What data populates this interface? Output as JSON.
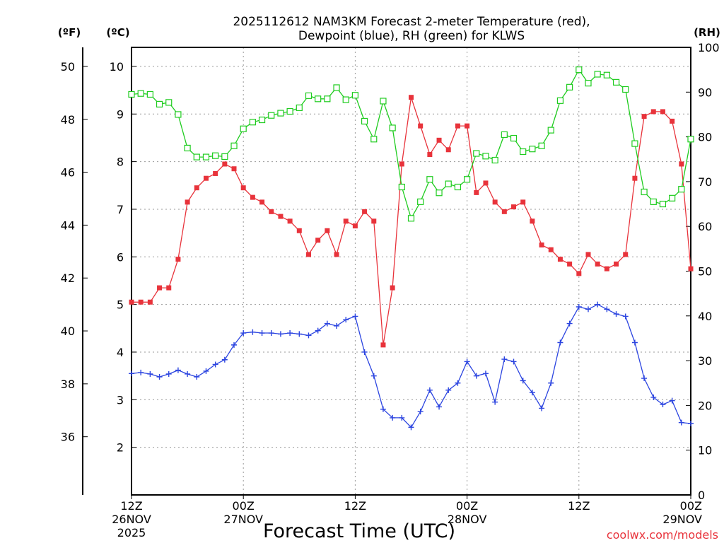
{
  "chart_data": {
    "type": "line",
    "title": "2025112612 NAM3KM Forecast 2-meter Temperature (red),",
    "subtitle": "Dewpoint (blue), RH (green) for KLWS",
    "xlabel": "Forecast Time (UTC)",
    "watermark": "coolwx.com/models",
    "units": {
      "fahrenheit": "(ºF)",
      "celsius": "(ºC)",
      "rh": "(RH)"
    },
    "x_range_hours": [
      0,
      60
    ],
    "x_ticks": [
      {
        "hour": 0,
        "l1": "12Z",
        "l2": "26NOV",
        "l3": "2025"
      },
      {
        "hour": 12,
        "l1": "00Z",
        "l2": "27NOV",
        "l3": ""
      },
      {
        "hour": 24,
        "l1": "12Z",
        "l2": "",
        "l3": ""
      },
      {
        "hour": 36,
        "l1": "00Z",
        "l2": "28NOV",
        "l3": ""
      },
      {
        "hour": 48,
        "l1": "12Z",
        "l2": "",
        "l3": ""
      },
      {
        "hour": 60,
        "l1": "00Z",
        "l2": "29NOV",
        "l3": ""
      }
    ],
    "y_celsius": {
      "range": [
        1,
        10.4
      ],
      "ticks": [
        2,
        3,
        4,
        5,
        6,
        7,
        8,
        9,
        10
      ]
    },
    "y_fahrenheit": {
      "range": [
        33.8,
        50.72
      ],
      "ticks": [
        36,
        38,
        40,
        42,
        44,
        46,
        48,
        50
      ]
    },
    "y_rh": {
      "range": [
        0,
        100
      ],
      "ticks": [
        0,
        10,
        20,
        30,
        40,
        50,
        60,
        70,
        80,
        90,
        100
      ]
    },
    "series": [
      {
        "name": "2-meter Temperature",
        "unit": "C",
        "color": "#e8333b",
        "marker": "filled-square",
        "values": [
          5.05,
          5.05,
          5.05,
          5.35,
          5.35,
          5.95,
          7.15,
          7.45,
          7.65,
          7.75,
          7.95,
          7.85,
          7.45,
          7.25,
          7.15,
          6.95,
          6.85,
          6.75,
          6.55,
          6.05,
          6.35,
          6.55,
          6.05,
          6.75,
          6.65,
          6.95,
          6.75,
          4.15,
          5.35,
          7.95,
          9.35,
          8.75,
          8.15,
          8.45,
          8.25,
          8.75,
          8.75,
          7.35,
          7.55,
          7.15,
          6.95,
          7.05,
          7.15,
          6.75,
          6.25,
          6.15,
          5.95,
          5.85,
          5.65,
          6.05,
          5.85,
          5.75,
          5.85,
          6.05,
          7.65,
          8.95,
          9.05,
          9.05,
          8.85,
          7.95,
          5.75
        ]
      },
      {
        "name": "Dewpoint",
        "unit": "C",
        "color": "#2c45e0",
        "marker": "plus",
        "values": [
          3.55,
          3.57,
          3.54,
          3.48,
          3.54,
          3.62,
          3.54,
          3.48,
          3.6,
          3.74,
          3.84,
          4.15,
          4.4,
          4.42,
          4.4,
          4.4,
          4.38,
          4.4,
          4.38,
          4.35,
          4.45,
          4.6,
          4.55,
          4.68,
          4.75,
          4.0,
          3.5,
          2.8,
          2.62,
          2.62,
          2.42,
          2.75,
          3.2,
          2.85,
          3.2,
          3.35,
          3.8,
          3.5,
          3.55,
          2.95,
          3.85,
          3.8,
          3.4,
          3.15,
          2.82,
          3.35,
          4.2,
          4.6,
          4.95,
          4.9,
          5.0,
          4.9,
          4.8,
          4.75,
          4.2,
          3.45,
          3.05,
          2.9,
          2.98,
          2.52,
          2.5
        ]
      },
      {
        "name": "RH",
        "unit": "%",
        "color": "#1ecc1e",
        "marker": "open-square",
        "values": [
          89.5,
          89.7,
          89.5,
          87.3,
          87.7,
          85,
          77.5,
          75.5,
          75.5,
          75.8,
          75.6,
          78,
          81.8,
          83.3,
          83.8,
          84.8,
          85.3,
          85.7,
          86.5,
          89.2,
          88.5,
          88.5,
          91,
          88.3,
          89.3,
          83.5,
          79.5,
          88,
          82,
          68.8,
          61.8,
          65.5,
          70.5,
          67.5,
          69.5,
          68.8,
          70.5,
          76.3,
          75.7,
          74.8,
          80.5,
          79.7,
          76.7,
          77.3,
          78,
          81.5,
          88.1,
          91.1,
          95,
          92,
          94,
          93.8,
          92.2,
          90.6,
          78.5,
          67.7,
          65.5,
          65,
          66.3,
          68.3,
          79.5
        ]
      }
    ]
  }
}
